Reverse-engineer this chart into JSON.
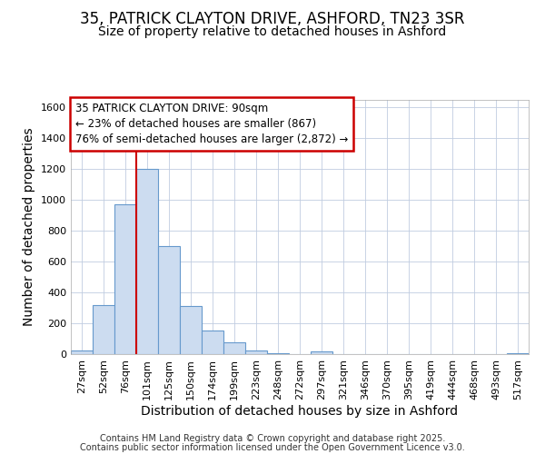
{
  "title_line1": "35, PATRICK CLAYTON DRIVE, ASHFORD, TN23 3SR",
  "title_line2": "Size of property relative to detached houses in Ashford",
  "xlabel": "Distribution of detached houses by size in Ashford",
  "ylabel": "Number of detached properties",
  "bin_labels": [
    "27sqm",
    "52sqm",
    "76sqm",
    "101sqm",
    "125sqm",
    "150sqm",
    "174sqm",
    "199sqm",
    "223sqm",
    "248sqm",
    "272sqm",
    "297sqm",
    "321sqm",
    "346sqm",
    "370sqm",
    "395sqm",
    "419sqm",
    "444sqm",
    "468sqm",
    "493sqm",
    "517sqm"
  ],
  "bin_values": [
    25,
    320,
    970,
    1200,
    700,
    310,
    155,
    75,
    25,
    5,
    0,
    15,
    0,
    0,
    0,
    0,
    0,
    0,
    0,
    0,
    5
  ],
  "bar_color": "#ccdcf0",
  "bar_edge_color": "#6699cc",
  "vline_color": "#cc0000",
  "vline_pos": 2.5,
  "ylim": [
    0,
    1650
  ],
  "yticks": [
    0,
    200,
    400,
    600,
    800,
    1000,
    1200,
    1400,
    1600
  ],
  "annotation_text": "35 PATRICK CLAYTON DRIVE: 90sqm\n← 23% of detached houses are smaller (867)\n76% of semi-detached houses are larger (2,872) →",
  "annotation_box_color": "#ffffff",
  "annotation_box_edge": "#cc0000",
  "bg_color": "#ffffff",
  "plot_bg_color": "#ffffff",
  "grid_color": "#c0cce0",
  "footer_line1": "Contains HM Land Registry data © Crown copyright and database right 2025.",
  "footer_line2": "Contains public sector information licensed under the Open Government Licence v3.0.",
  "title1_fontsize": 12,
  "title2_fontsize": 10,
  "axis_label_fontsize": 10,
  "tick_fontsize": 8,
  "annotation_fontsize": 8.5,
  "footer_fontsize": 7
}
